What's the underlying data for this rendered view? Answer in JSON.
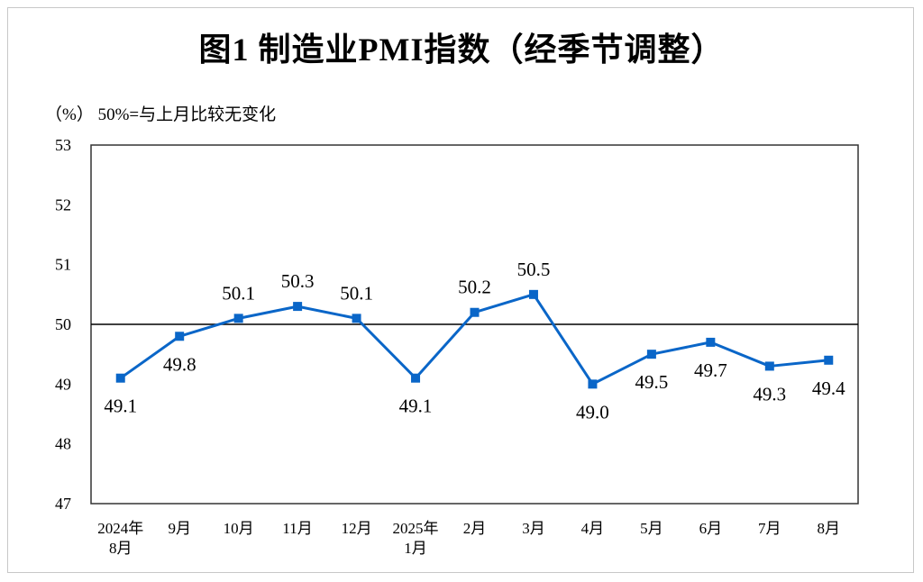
{
  "chart_data": {
    "type": "line",
    "title": "图1  制造业PMI指数（经季节调整）",
    "ylabel": "（%）  50%=与上月比较无变化",
    "xlabel": "",
    "categories": [
      [
        "2024年",
        "8月"
      ],
      [
        "9月"
      ],
      [
        "10月"
      ],
      [
        "11月"
      ],
      [
        "12月"
      ],
      [
        "2025年",
        "1月"
      ],
      [
        "2月"
      ],
      [
        "3月"
      ],
      [
        "4月"
      ],
      [
        "5月"
      ],
      [
        "6月"
      ],
      [
        "7月"
      ],
      [
        "8月"
      ]
    ],
    "values": [
      49.1,
      49.8,
      50.1,
      50.3,
      50.1,
      49.1,
      50.2,
      50.5,
      49.0,
      49.5,
      49.7,
      49.3,
      49.4
    ],
    "data_labels": [
      "49.1",
      "49.8",
      "50.1",
      "50.3",
      "50.1",
      "49.1",
      "50.2",
      "50.5",
      "49.0",
      "49.5",
      "49.7",
      "49.3",
      "49.4"
    ],
    "ylim": [
      47,
      53
    ],
    "yticks": [
      "47",
      "48",
      "49",
      "50",
      "51",
      "52",
      "53"
    ],
    "reference_line": 50,
    "grid": false,
    "legend": "none",
    "colors": {
      "series": "#0a66c8",
      "reference": "#000000"
    }
  }
}
